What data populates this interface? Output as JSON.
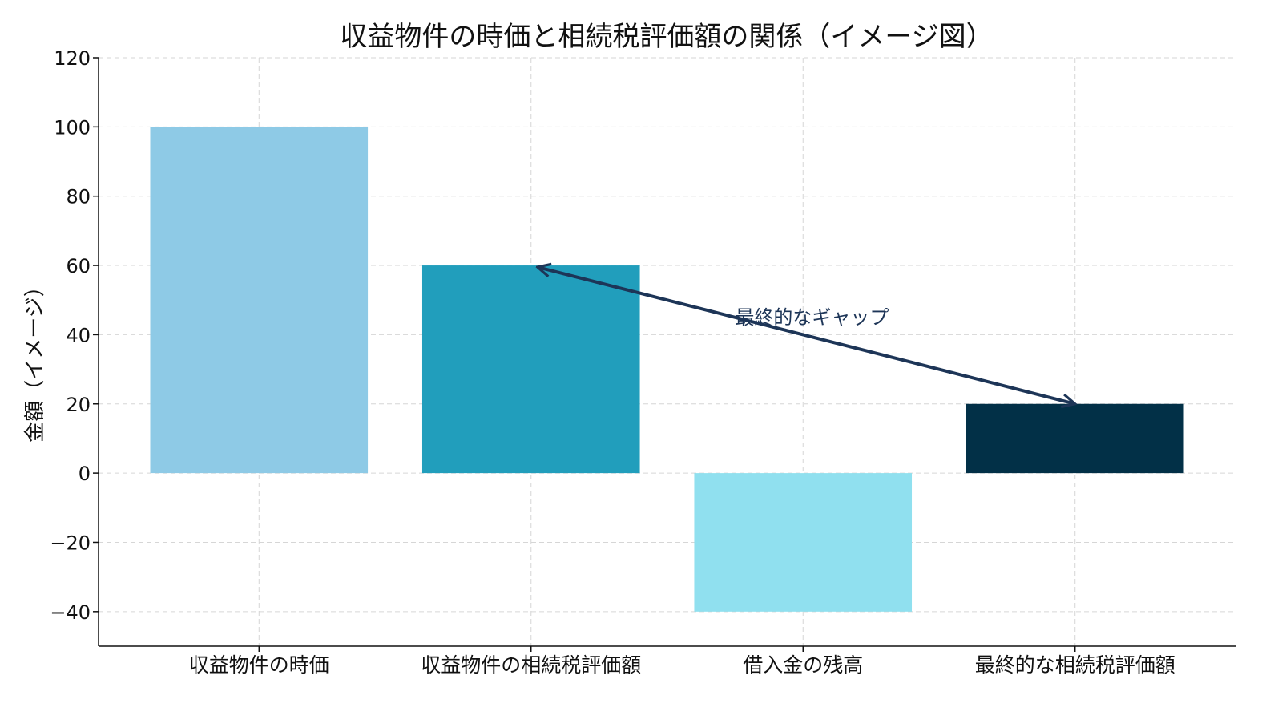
{
  "chart_data": {
    "type": "bar",
    "title": "収益物件の時価と相続税評価額の関係（イメージ図）",
    "xlabel": "",
    "ylabel": "金額（イメージ）",
    "categories": [
      "収益物件の時価",
      "収益物件の相続税評価額",
      "借入金の残高",
      "最終的な相続税評価額"
    ],
    "values": [
      100,
      60,
      -40,
      20
    ],
    "colors": [
      "#8ECAE6",
      "#219EBC",
      "#90E0EF",
      "#023047"
    ],
    "ylim": [
      -50,
      120
    ],
    "yticks": [
      -40,
      -20,
      0,
      20,
      40,
      60,
      80,
      100,
      120
    ],
    "ytick_labels": [
      "−40",
      "−20",
      "0",
      "20",
      "40",
      "60",
      "80",
      "100",
      "120"
    ],
    "grid": true,
    "annotation": {
      "text": "最終的なギャップ",
      "from": [
        3,
        20
      ],
      "to": [
        1,
        60
      ],
      "text_at": [
        1.75,
        45
      ],
      "color": "#1D3557"
    }
  }
}
